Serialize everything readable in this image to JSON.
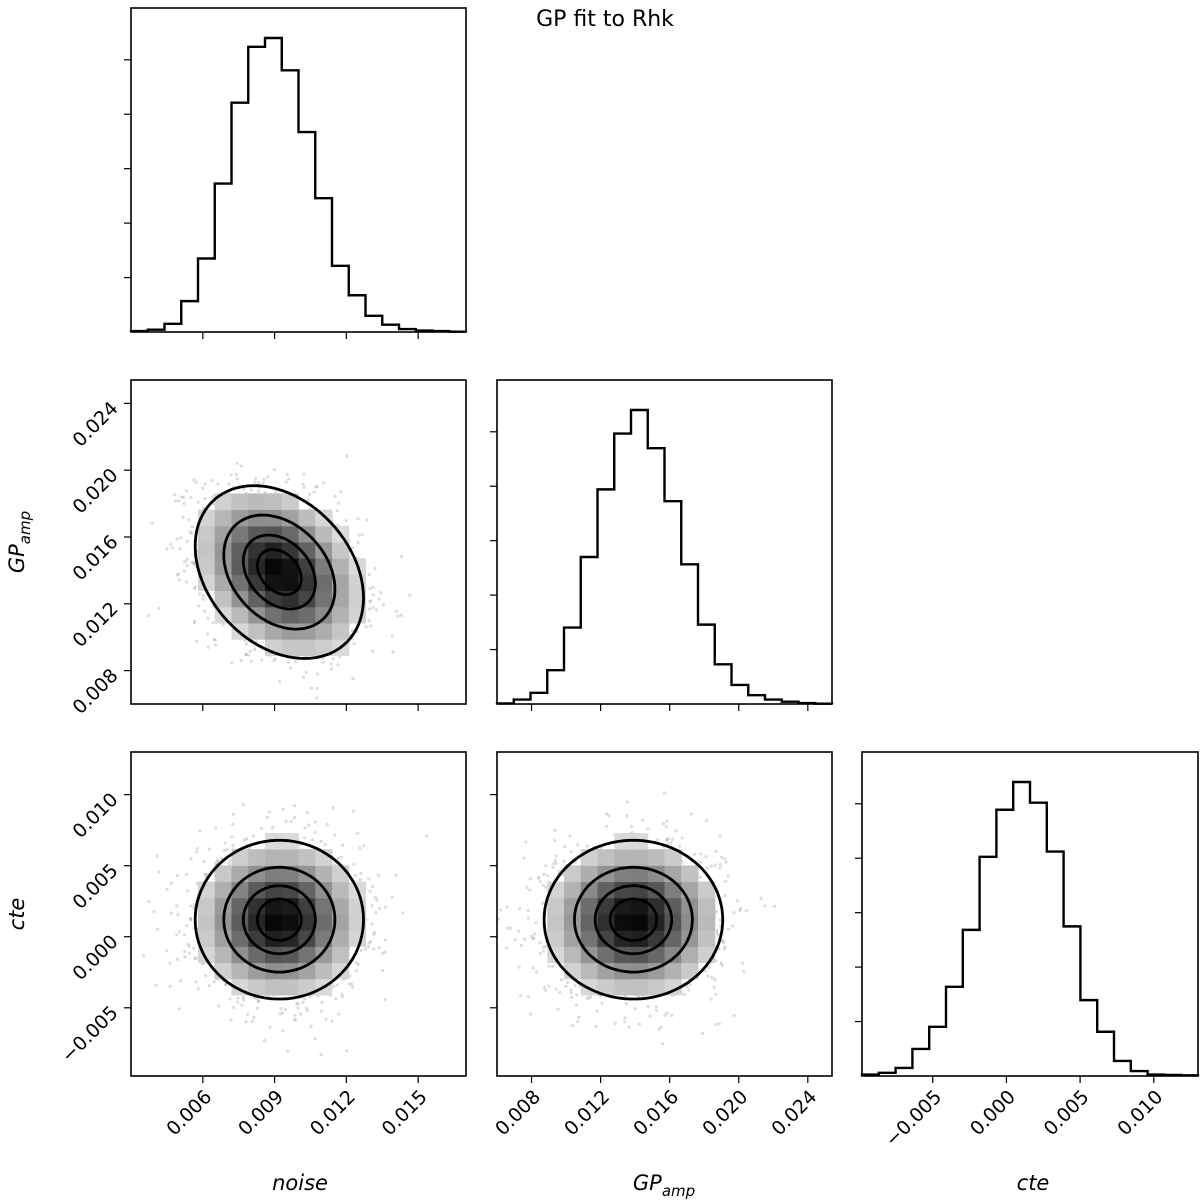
{
  "title": "GP fit to Rhk",
  "chart_data": {
    "type": "corner",
    "title": "GP fit to Rhk",
    "parameters": [
      {
        "key": "noise",
        "label": "noise",
        "sub": "",
        "mean": 0.0092,
        "sd": 0.0017,
        "range": [
          0.003,
          0.017
        ],
        "ticks": [
          0.006,
          0.009,
          0.012,
          0.015
        ],
        "tick_labels": [
          "0.006",
          "0.009",
          "0.012",
          "0.015"
        ]
      },
      {
        "key": "gp_amp",
        "label": "GP",
        "sub": "amp",
        "mean": 0.0139,
        "sd": 0.0025,
        "range": [
          0.006,
          0.0254
        ],
        "ticks": [
          0.008,
          0.012,
          0.016,
          0.02,
          0.024
        ],
        "tick_labels": [
          "0.008",
          "0.012",
          "0.016",
          "0.020",
          "0.024"
        ]
      },
      {
        "key": "cte",
        "label": "cte",
        "sub": "",
        "mean": 0.0012,
        "sd": 0.0027,
        "range": [
          -0.0098,
          0.013
        ],
        "ticks": [
          -0.005,
          0.0,
          0.005,
          0.01
        ],
        "tick_labels": [
          "−0.005",
          "0.000",
          "0.005",
          "0.010"
        ]
      }
    ],
    "correlations": {
      "noise_gp_amp": -0.3,
      "noise_cte": 0.0,
      "gp_amp_cte": 0.0
    },
    "histograms": {
      "noise": {
        "bin_edges": [
          0.003,
          0.0037,
          0.0044,
          0.0051,
          0.0058,
          0.0065,
          0.0072,
          0.0079,
          0.0086,
          0.0093,
          0.01,
          0.0107,
          0.0114,
          0.0121,
          0.0128,
          0.0135,
          0.0142,
          0.0149,
          0.0156,
          0.0163,
          0.017
        ],
        "counts": [
          0.3,
          0.8,
          2.8,
          10.5,
          25.0,
          50.5,
          78.0,
          97.0,
          100.0,
          89.0,
          68.0,
          45.5,
          22.5,
          12.5,
          5.5,
          2.5,
          1.0,
          0.5,
          0.3,
          0.1
        ]
      },
      "gp_amp": {
        "bin_edges": [
          0.006,
          0.00697,
          0.00794,
          0.00891,
          0.00988,
          0.01085,
          0.01182,
          0.01279,
          0.01376,
          0.01473,
          0.0157,
          0.01667,
          0.01764,
          0.01861,
          0.01958,
          0.02055,
          0.02152,
          0.02249,
          0.02346,
          0.02443,
          0.0254
        ],
        "counts": [
          0.2,
          1.5,
          3.8,
          11.5,
          26.0,
          50.0,
          73.0,
          92.0,
          100.0,
          87.0,
          69.0,
          47.5,
          27.0,
          13.5,
          6.5,
          3.0,
          1.5,
          0.8,
          0.3,
          0.1
        ]
      },
      "cte": {
        "bin_edges": [
          -0.0098,
          -0.00866,
          -0.00752,
          -0.00638,
          -0.00524,
          -0.0041,
          -0.00296,
          -0.00182,
          -0.00068,
          0.00046,
          0.0016,
          0.00274,
          0.00388,
          0.00502,
          0.00616,
          0.0073,
          0.00844,
          0.00958,
          0.01072,
          0.01186,
          0.013
        ],
        "counts": [
          0.4,
          0.9,
          2.3,
          7.7,
          14.0,
          25.4,
          41.6,
          62.4,
          75.8,
          83.7,
          77.8,
          63.9,
          42.6,
          21.6,
          12.6,
          4.3,
          1.4,
          0.4,
          0.3,
          0.2
        ]
      }
    },
    "contour_levels_sigma": [
      0.5,
      1.0,
      1.5,
      2.0
    ],
    "grid": false,
    "legend": "none"
  }
}
